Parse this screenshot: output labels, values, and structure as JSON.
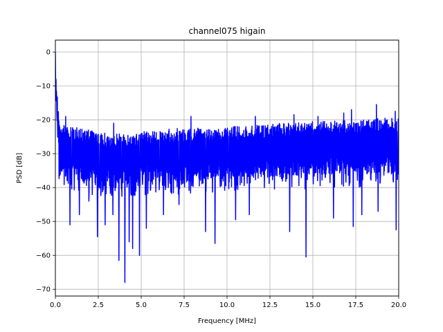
{
  "chart_data": {
    "type": "line",
    "title": "channel075 higain",
    "xlabel": "Frequency [MHz]",
    "ylabel": "PSD [dB]",
    "xlim": [
      0.0,
      20.0
    ],
    "ylim": [
      -72,
      3.5
    ],
    "grid": true,
    "series": [
      {
        "color": "#0000ff",
        "envelope": {
          "x": [
            0.0,
            0.02,
            0.05,
            0.1,
            0.15,
            0.2,
            0.3,
            0.5,
            1.0,
            1.5,
            2.0,
            2.5,
            3.0,
            3.5,
            4.0,
            4.5,
            5.0,
            6.0,
            7.0,
            8.0,
            9.0,
            10.0,
            11.0,
            12.0,
            13.0,
            14.0,
            15.0,
            16.0,
            17.0,
            18.0,
            19.0,
            20.0
          ],
          "top": [
            0.0,
            -3.0,
            -7.0,
            -11.0,
            -16.0,
            -19.0,
            -21.0,
            -21.5,
            -22.0,
            -22.5,
            -23.0,
            -23.5,
            -24.0,
            -24.0,
            -24.0,
            -24.0,
            -23.5,
            -23.0,
            -22.5,
            -22.5,
            -22.5,
            -22.0,
            -22.0,
            -21.5,
            -21.0,
            -21.0,
            -20.5,
            -20.5,
            -20.0,
            -20.0,
            -19.5,
            -19.5
          ],
          "base": [
            -10.0,
            -12.0,
            -18.0,
            -25.0,
            -32.0,
            -36.0,
            -37.0,
            -37.0,
            -37.5,
            -38.0,
            -38.5,
            -39.0,
            -39.0,
            -39.0,
            -39.0,
            -39.0,
            -38.5,
            -38.0,
            -38.0,
            -38.0,
            -37.5,
            -37.0,
            -37.0,
            -37.0,
            -37.0,
            -36.5,
            -36.5,
            -36.0,
            -36.0,
            -36.0,
            -35.5,
            -35.5
          ]
        },
        "dips": [
          [
            0.85,
            -51
          ],
          [
            1.4,
            -48
          ],
          [
            1.95,
            -44
          ],
          [
            2.45,
            -54.5
          ],
          [
            2.9,
            -51
          ],
          [
            3.35,
            -48
          ],
          [
            3.7,
            -61.5
          ],
          [
            4.05,
            -68
          ],
          [
            4.3,
            -56
          ],
          [
            4.5,
            -58
          ],
          [
            4.9,
            -60
          ],
          [
            5.3,
            -52
          ],
          [
            6.3,
            -48
          ],
          [
            7.2,
            -45
          ],
          [
            8.75,
            -53
          ],
          [
            9.3,
            -56.5
          ],
          [
            10.5,
            -49.5
          ],
          [
            11.3,
            -48
          ],
          [
            13.65,
            -53
          ],
          [
            14.6,
            -60.5
          ],
          [
            16.2,
            -49
          ],
          [
            17.35,
            -51.5
          ],
          [
            17.85,
            -48
          ],
          [
            18.8,
            -47
          ],
          [
            19.85,
            -52.5
          ]
        ],
        "peaks": [
          [
            0.6,
            -19
          ],
          [
            3.4,
            -21
          ],
          [
            7.9,
            -19
          ],
          [
            11.65,
            -19
          ],
          [
            13.9,
            -18.5
          ],
          [
            15.3,
            -19
          ],
          [
            16.8,
            -18
          ],
          [
            17.25,
            -17
          ],
          [
            18.7,
            -15.5
          ],
          [
            19.8,
            -17.5
          ]
        ]
      }
    ]
  },
  "axes": {
    "xticks": [
      {
        "value": 0.0,
        "label": "0.0"
      },
      {
        "value": 2.5,
        "label": "2.5"
      },
      {
        "value": 5.0,
        "label": "5.0"
      },
      {
        "value": 7.5,
        "label": "7.5"
      },
      {
        "value": 10.0,
        "label": "10.0"
      },
      {
        "value": 12.5,
        "label": "12.5"
      },
      {
        "value": 15.0,
        "label": "15.0"
      },
      {
        "value": 17.5,
        "label": "17.5"
      },
      {
        "value": 20.0,
        "label": "20.0"
      }
    ],
    "yticks": [
      {
        "value": 0,
        "label": "0"
      },
      {
        "value": -10,
        "label": "−10"
      },
      {
        "value": -20,
        "label": "−20"
      },
      {
        "value": -30,
        "label": "−30"
      },
      {
        "value": -40,
        "label": "−40"
      },
      {
        "value": -50,
        "label": "−50"
      },
      {
        "value": -60,
        "label": "−60"
      },
      {
        "value": -70,
        "label": "−70"
      }
    ]
  }
}
